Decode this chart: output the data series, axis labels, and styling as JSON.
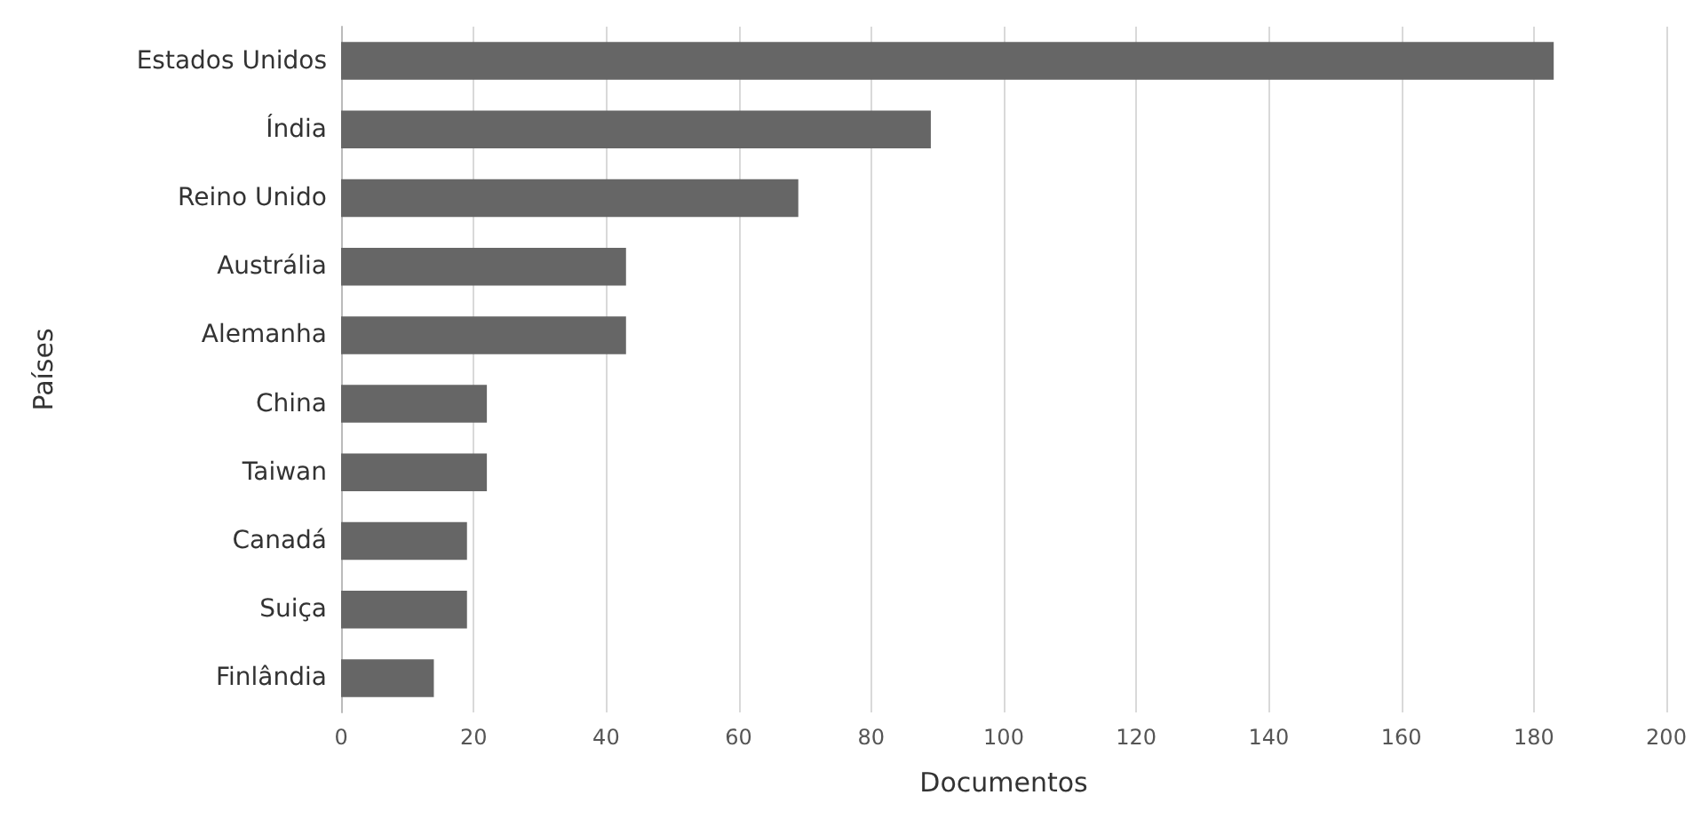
{
  "chart_data": {
    "type": "bar",
    "orientation": "horizontal",
    "xlabel": "Documentos",
    "ylabel": "Países",
    "categories": [
      "Estados Unidos",
      "Índia",
      "Reino Unido",
      "Austrália",
      "Alemanha",
      "China",
      "Taiwan",
      "Canadá",
      "Suiça",
      "Finlândia"
    ],
    "values": [
      183,
      89,
      69,
      43,
      43,
      22,
      22,
      19,
      19,
      14
    ],
    "color": "#666666",
    "xlim": [
      0,
      200
    ],
    "xticks": [
      0,
      20,
      40,
      60,
      80,
      100,
      120,
      140,
      160,
      180,
      200
    ],
    "grid": "x"
  }
}
